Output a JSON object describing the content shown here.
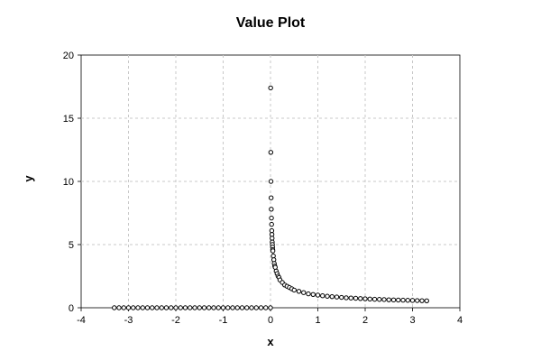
{
  "chart_data": {
    "type": "scatter",
    "title": "Value Plot",
    "xlabel": "x",
    "ylabel": "y",
    "xlim": [
      -4,
      4
    ],
    "ylim": [
      0,
      20
    ],
    "xticks": [
      "-4",
      "-3",
      "-2",
      "-1",
      "0",
      "1",
      "2",
      "3",
      "4"
    ],
    "yticks": [
      "0",
      "5",
      "10",
      "15",
      "20"
    ],
    "grid": true,
    "legend": "none",
    "marker": "open-circle",
    "series": [
      {
        "points": [
          [
            -3.3,
            0
          ],
          [
            -3.2,
            0
          ],
          [
            -3.1,
            0
          ],
          [
            -3.0,
            0
          ],
          [
            -2.9,
            0
          ],
          [
            -2.8,
            0
          ],
          [
            -2.7,
            0
          ],
          [
            -2.6,
            0
          ],
          [
            -2.5,
            0
          ],
          [
            -2.4,
            0
          ],
          [
            -2.3,
            0
          ],
          [
            -2.2,
            0
          ],
          [
            -2.1,
            0
          ],
          [
            -2.0,
            0
          ],
          [
            -1.9,
            0
          ],
          [
            -1.8,
            0
          ],
          [
            -1.7,
            0
          ],
          [
            -1.6,
            0
          ],
          [
            -1.5,
            0
          ],
          [
            -1.4,
            0
          ],
          [
            -1.3,
            0
          ],
          [
            -1.2,
            0
          ],
          [
            -1.1,
            0
          ],
          [
            -1.0,
            0
          ],
          [
            -0.9,
            0
          ],
          [
            -0.8,
            0
          ],
          [
            -0.7,
            0
          ],
          [
            -0.6,
            0
          ],
          [
            -0.5,
            0
          ],
          [
            -0.4,
            0
          ],
          [
            -0.3,
            0
          ],
          [
            -0.2,
            0
          ],
          [
            -0.1,
            0
          ],
          [
            0.0,
            0
          ],
          [
            0.0033,
            17.4
          ],
          [
            0.0066,
            12.3
          ],
          [
            0.01,
            10.0
          ],
          [
            0.0133,
            8.7
          ],
          [
            0.0166,
            7.8
          ],
          [
            0.02,
            7.1
          ],
          [
            0.0233,
            6.6
          ],
          [
            0.0266,
            6.1
          ],
          [
            0.03,
            5.8
          ],
          [
            0.0333,
            5.5
          ],
          [
            0.0366,
            5.2
          ],
          [
            0.04,
            5.0
          ],
          [
            0.0433,
            4.8
          ],
          [
            0.0466,
            4.6
          ],
          [
            0.05,
            4.5
          ],
          [
            0.06,
            4.1
          ],
          [
            0.07,
            3.8
          ],
          [
            0.08,
            3.5
          ],
          [
            0.09,
            3.3
          ],
          [
            0.1,
            3.2
          ],
          [
            0.12,
            2.9
          ],
          [
            0.14,
            2.7
          ],
          [
            0.16,
            2.5
          ],
          [
            0.18,
            2.4
          ],
          [
            0.2,
            2.2
          ],
          [
            0.25,
            2.0
          ],
          [
            0.3,
            1.8
          ],
          [
            0.35,
            1.7
          ],
          [
            0.4,
            1.6
          ],
          [
            0.45,
            1.5
          ],
          [
            0.5,
            1.4
          ],
          [
            0.6,
            1.3
          ],
          [
            0.7,
            1.2
          ],
          [
            0.8,
            1.1
          ],
          [
            0.9,
            1.05
          ],
          [
            1.0,
            1.0
          ],
          [
            1.1,
            0.95
          ],
          [
            1.2,
            0.91
          ],
          [
            1.3,
            0.88
          ],
          [
            1.4,
            0.85
          ],
          [
            1.5,
            0.82
          ],
          [
            1.6,
            0.79
          ],
          [
            1.7,
            0.77
          ],
          [
            1.8,
            0.75
          ],
          [
            1.9,
            0.73
          ],
          [
            2.0,
            0.71
          ],
          [
            2.1,
            0.69
          ],
          [
            2.2,
            0.67
          ],
          [
            2.3,
            0.66
          ],
          [
            2.4,
            0.65
          ],
          [
            2.5,
            0.63
          ],
          [
            2.6,
            0.62
          ],
          [
            2.7,
            0.61
          ],
          [
            2.8,
            0.6
          ],
          [
            2.9,
            0.59
          ],
          [
            3.0,
            0.58
          ],
          [
            3.1,
            0.57
          ],
          [
            3.2,
            0.56
          ],
          [
            3.3,
            0.55
          ]
        ]
      }
    ]
  }
}
